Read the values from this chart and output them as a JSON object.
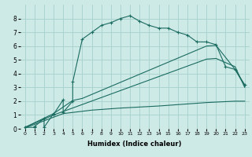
{
  "bg_color": "#ceeae7",
  "grid_color": "#aad4d0",
  "line_color": "#1a6b60",
  "xlabel": "Humidex (Indice chaleur)",
  "xlim": [
    -0.5,
    23.5
  ],
  "ylim": [
    0,
    9
  ],
  "xtick_labels": [
    "0",
    "1",
    "2",
    "3",
    "4",
    "5",
    "6",
    "7",
    "8",
    "9",
    "10",
    "11",
    "12",
    "13",
    "14",
    "15",
    "16",
    "17",
    "18",
    "19",
    "20",
    "21",
    "22",
    "23"
  ],
  "ytick_labels": [
    "0",
    "1",
    "2",
    "3",
    "4",
    "5",
    "6",
    "7",
    "8"
  ],
  "series1_x": [
    0,
    1,
    1,
    2,
    2,
    3,
    3,
    4,
    4,
    5,
    5,
    6,
    7,
    8,
    9,
    10,
    11,
    12,
    13,
    14,
    15,
    16,
    17,
    18,
    19,
    20,
    21,
    22,
    23
  ],
  "series1_y": [
    0.1,
    0.1,
    0.15,
    0.75,
    0.1,
    1.1,
    1.05,
    2.1,
    1.2,
    2.0,
    3.4,
    6.5,
    7.0,
    7.5,
    7.7,
    8.0,
    8.2,
    7.8,
    7.5,
    7.3,
    7.3,
    7.0,
    6.8,
    6.3,
    6.3,
    6.1,
    4.5,
    4.3,
    3.2
  ],
  "series2_x": [
    0,
    3,
    5,
    6,
    19,
    20,
    22,
    23
  ],
  "series2_y": [
    0.1,
    1.1,
    2.05,
    2.2,
    6.0,
    6.05,
    4.3,
    3.1
  ],
  "series3_x": [
    0,
    3,
    19,
    20,
    22,
    23
  ],
  "series3_y": [
    0.1,
    1.0,
    5.05,
    5.1,
    4.5,
    3.0
  ],
  "series4_x": [
    0,
    4,
    7,
    10,
    14,
    19,
    22,
    23
  ],
  "series4_y": [
    0.05,
    1.1,
    1.35,
    1.5,
    1.65,
    1.9,
    2.0,
    2.0
  ]
}
